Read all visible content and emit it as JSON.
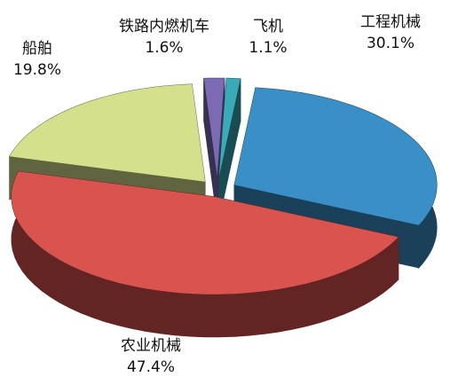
{
  "chart_data": {
    "type": "pie",
    "categories": [
      "工程机械",
      "农业机械",
      "船舶",
      "铁路内燃机车",
      "飞机"
    ],
    "values": [
      30.1,
      47.4,
      19.8,
      1.6,
      1.1
    ],
    "value_labels": [
      "30.1%",
      "47.4%",
      "19.8%",
      "1.6%",
      "1.1%"
    ],
    "colors": [
      "#3a8fc7",
      "#d9534f",
      "#d5e08c",
      "#7b6bb4",
      "#3aaab9"
    ]
  }
}
